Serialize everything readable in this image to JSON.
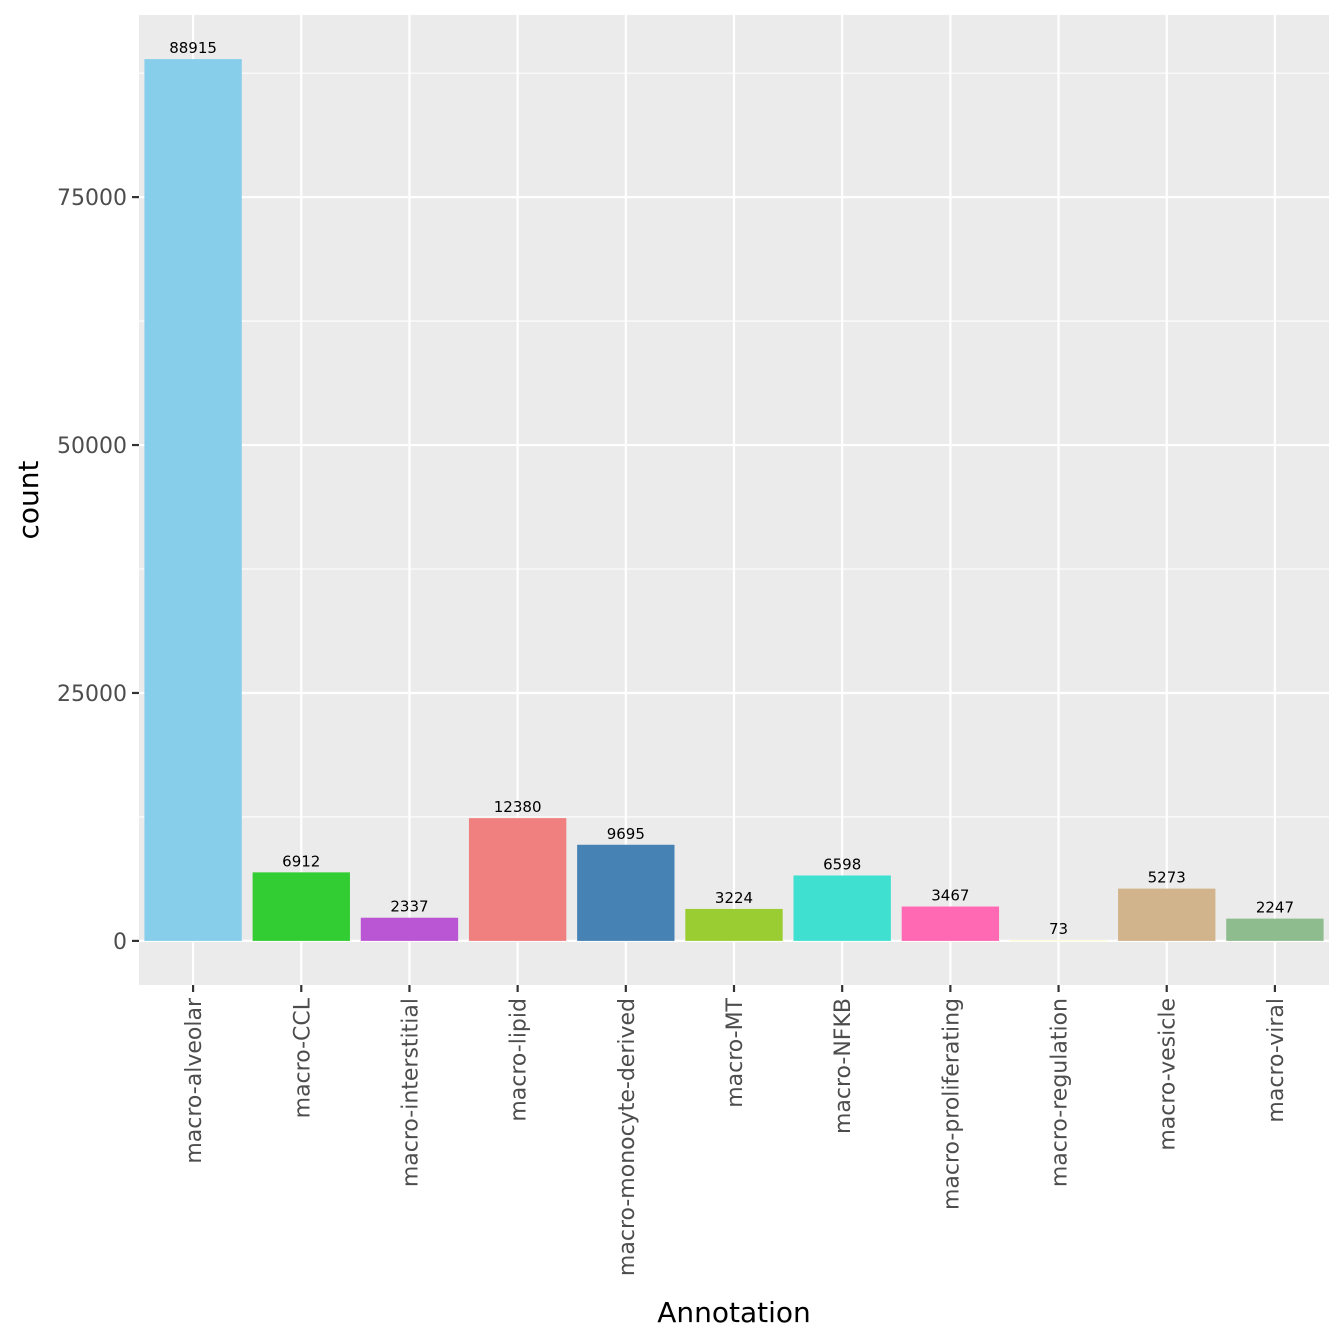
{
  "chart_data": {
    "type": "bar",
    "title": "",
    "xlabel": "Annotation",
    "ylabel": "count",
    "categories": [
      "macro-alveolar",
      "macro-CCL",
      "macro-interstitial",
      "macro-lipid",
      "macro-monocyte-derived",
      "macro-MT",
      "macro-NFKB",
      "macro-proliferating",
      "macro-regulation",
      "macro-vesicle",
      "macro-viral"
    ],
    "values": [
      88915,
      6912,
      2337,
      12380,
      9695,
      3224,
      6598,
      3467,
      73,
      5273,
      2247
    ],
    "value_labels": [
      "88915",
      "6912",
      "2337",
      "12380",
      "9695",
      "3224",
      "6598",
      "3467",
      "73",
      "5273",
      "2247"
    ],
    "colors": [
      "#87CEEB",
      "#32CD32",
      "#BA55D3",
      "#F08080",
      "#4682B4",
      "#9ACD32",
      "#40E0D0",
      "#FF69B4",
      "#FFFACD",
      "#D2B48C",
      "#8FBC8F"
    ],
    "y_ticks": [
      0,
      25000,
      50000,
      75000
    ],
    "y_tick_labels": [
      "0",
      "25000",
      "50000",
      "75000"
    ],
    "ylim": [
      -4446,
      93362
    ],
    "grid": true,
    "legend": "none",
    "panel_background": "#EBEBEB",
    "grid_color": "#FFFFFF"
  }
}
